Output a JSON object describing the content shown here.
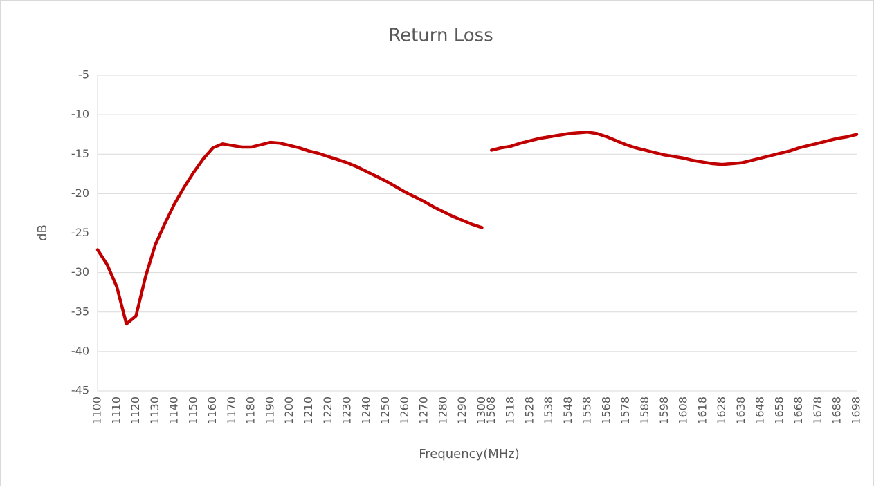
{
  "chart_data": {
    "type": "line",
    "title": "Return Loss",
    "x_label": "Frequency(MHz)",
    "y_label": "dB",
    "categories": [
      "1100",
      null,
      "1110",
      null,
      "1120",
      null,
      "1130",
      null,
      "1140",
      null,
      "1150",
      null,
      "1160",
      null,
      "1170",
      null,
      "1180",
      null,
      "1190",
      null,
      "1200",
      null,
      "1210",
      null,
      "1220",
      null,
      "1230",
      null,
      "1240",
      null,
      "1250",
      null,
      "1260",
      null,
      "1270",
      null,
      "1280",
      null,
      "1290",
      null,
      "1300",
      "1508",
      null,
      "1518",
      null,
      "1528",
      null,
      "1538",
      null,
      "1548",
      null,
      "1558",
      null,
      "1568",
      null,
      "1578",
      null,
      "1588",
      null,
      "1598",
      null,
      "1608",
      null,
      "1618",
      null,
      "1628",
      null,
      "1638",
      null,
      "1648",
      null,
      "1658",
      null,
      "1668",
      null,
      "1678",
      null,
      "1688",
      null,
      "1698"
    ],
    "series": [
      {
        "color": "#c00000",
        "values": [
          -27.1,
          -29.0,
          -31.8,
          -36.5,
          -35.5,
          -30.5,
          -26.5,
          -23.8,
          -21.3,
          -19.2,
          -17.3,
          -15.6,
          -14.2,
          -13.7,
          -13.9,
          -14.1,
          -14.1,
          -13.8,
          -13.5,
          -13.6,
          -13.9,
          -14.2,
          -14.6,
          -14.9,
          -15.3,
          -15.7,
          -16.1,
          -16.6,
          -17.2,
          -17.8,
          -18.4,
          -19.1,
          -19.8,
          -20.4,
          -21.0,
          -21.7,
          -22.3,
          -22.9,
          -23.4,
          -23.9,
          -24.3,
          null,
          null,
          null,
          null,
          null,
          null,
          null,
          null,
          null,
          null,
          null,
          null,
          null,
          null,
          null,
          null,
          null,
          null,
          null,
          null,
          null,
          null,
          null,
          null,
          null,
          null,
          null,
          null,
          null,
          null,
          null,
          null,
          null,
          null,
          null,
          null,
          null,
          null,
          null
        ]
      },
      {
        "color": "#c00000",
        "values": [
          null,
          null,
          null,
          null,
          null,
          null,
          null,
          null,
          null,
          null,
          null,
          null,
          null,
          null,
          null,
          null,
          null,
          null,
          null,
          null,
          null,
          null,
          null,
          null,
          null,
          null,
          null,
          null,
          null,
          null,
          null,
          null,
          null,
          null,
          null,
          null,
          null,
          null,
          null,
          null,
          null,
          -14.5,
          -14.2,
          -14.0,
          -13.6,
          -13.3,
          -13.0,
          -12.8,
          -12.6,
          -12.4,
          -12.3,
          -12.2,
          -12.4,
          -12.8,
          -13.3,
          -13.8,
          -14.2,
          -14.5,
          -14.8,
          -15.1,
          -15.3,
          -15.5,
          -15.8,
          -16.0,
          -16.2,
          -16.3,
          -16.2,
          -16.1,
          -15.8,
          -15.5,
          -15.2,
          -14.9,
          -14.6,
          -14.2,
          -13.9,
          -13.6,
          -13.3,
          -13.0,
          -12.8,
          -12.5
        ]
      }
    ],
    "ylim": [
      -45,
      -5
    ],
    "yticks": [
      -45,
      -40,
      -35,
      -30,
      -25,
      -20,
      -15,
      -10,
      -5
    ],
    "grid": true
  }
}
